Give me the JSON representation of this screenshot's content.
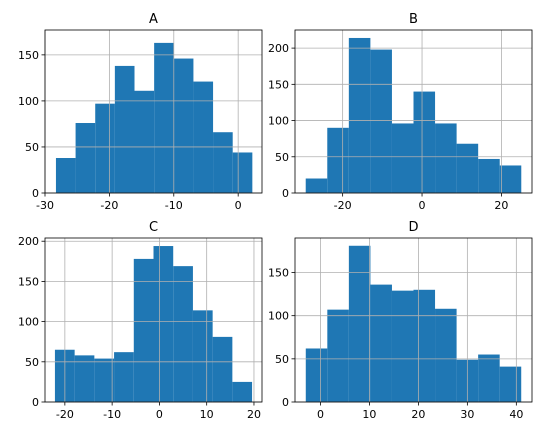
{
  "chart_data": [
    {
      "type": "histogram",
      "title": "A",
      "color": "#1f77b4",
      "grid": true,
      "bins": [
        -28.3,
        -25.25,
        -22.2,
        -19.15,
        -16.1,
        -13.05,
        -10.0,
        -6.95,
        -3.9,
        -0.85,
        2.2
      ],
      "values": [
        38,
        76,
        97,
        138,
        111,
        163,
        146,
        121,
        66,
        44
      ],
      "xlim": [
        -30,
        3.7
      ],
      "xticks": [
        -30,
        -20,
        -10,
        0
      ],
      "ylim": [
        0,
        177
      ],
      "yticks": [
        0,
        50,
        100,
        150
      ]
    },
    {
      "type": "histogram",
      "title": "B",
      "color": "#1f77b4",
      "grid": true,
      "bins": [
        -29.3,
        -23.87,
        -18.44,
        -13.01,
        -7.58,
        -2.15,
        3.28,
        8.71,
        14.14,
        19.57,
        25.0
      ],
      "values": [
        20,
        90,
        214,
        198,
        96,
        140,
        96,
        68,
        47,
        38
      ],
      "xlim": [
        -32,
        27.7
      ],
      "xticks": [
        -20,
        0,
        20
      ],
      "ylim": [
        0,
        225
      ],
      "yticks": [
        0,
        50,
        100,
        150,
        200
      ]
    },
    {
      "type": "histogram",
      "title": "C",
      "color": "#1f77b4",
      "grid": true,
      "bins": [
        -22.1,
        -17.93,
        -13.76,
        -9.59,
        -5.42,
        -1.25,
        2.92,
        7.09,
        11.26,
        15.43,
        19.6
      ],
      "values": [
        65,
        58,
        54,
        62,
        178,
        194,
        169,
        114,
        81,
        25
      ],
      "xlim": [
        -24.2,
        21.7
      ],
      "xticks": [
        -20,
        -10,
        0,
        10,
        20
      ],
      "ylim": [
        0,
        204
      ],
      "yticks": [
        0,
        50,
        100,
        150,
        200
      ]
    },
    {
      "type": "histogram",
      "title": "D",
      "color": "#1f77b4",
      "grid": true,
      "bins": [
        -3,
        1.4,
        5.8,
        10.2,
        14.6,
        19,
        23.4,
        27.8,
        32.2,
        36.6,
        41
      ],
      "values": [
        62,
        107,
        181,
        136,
        129,
        130,
        108,
        49,
        55,
        41
      ],
      "xlim": [
        -5.2,
        43.2
      ],
      "xticks": [
        0,
        10,
        20,
        30,
        40
      ],
      "ylim": [
        0,
        190
      ],
      "yticks": [
        0,
        50,
        100,
        150
      ]
    }
  ]
}
